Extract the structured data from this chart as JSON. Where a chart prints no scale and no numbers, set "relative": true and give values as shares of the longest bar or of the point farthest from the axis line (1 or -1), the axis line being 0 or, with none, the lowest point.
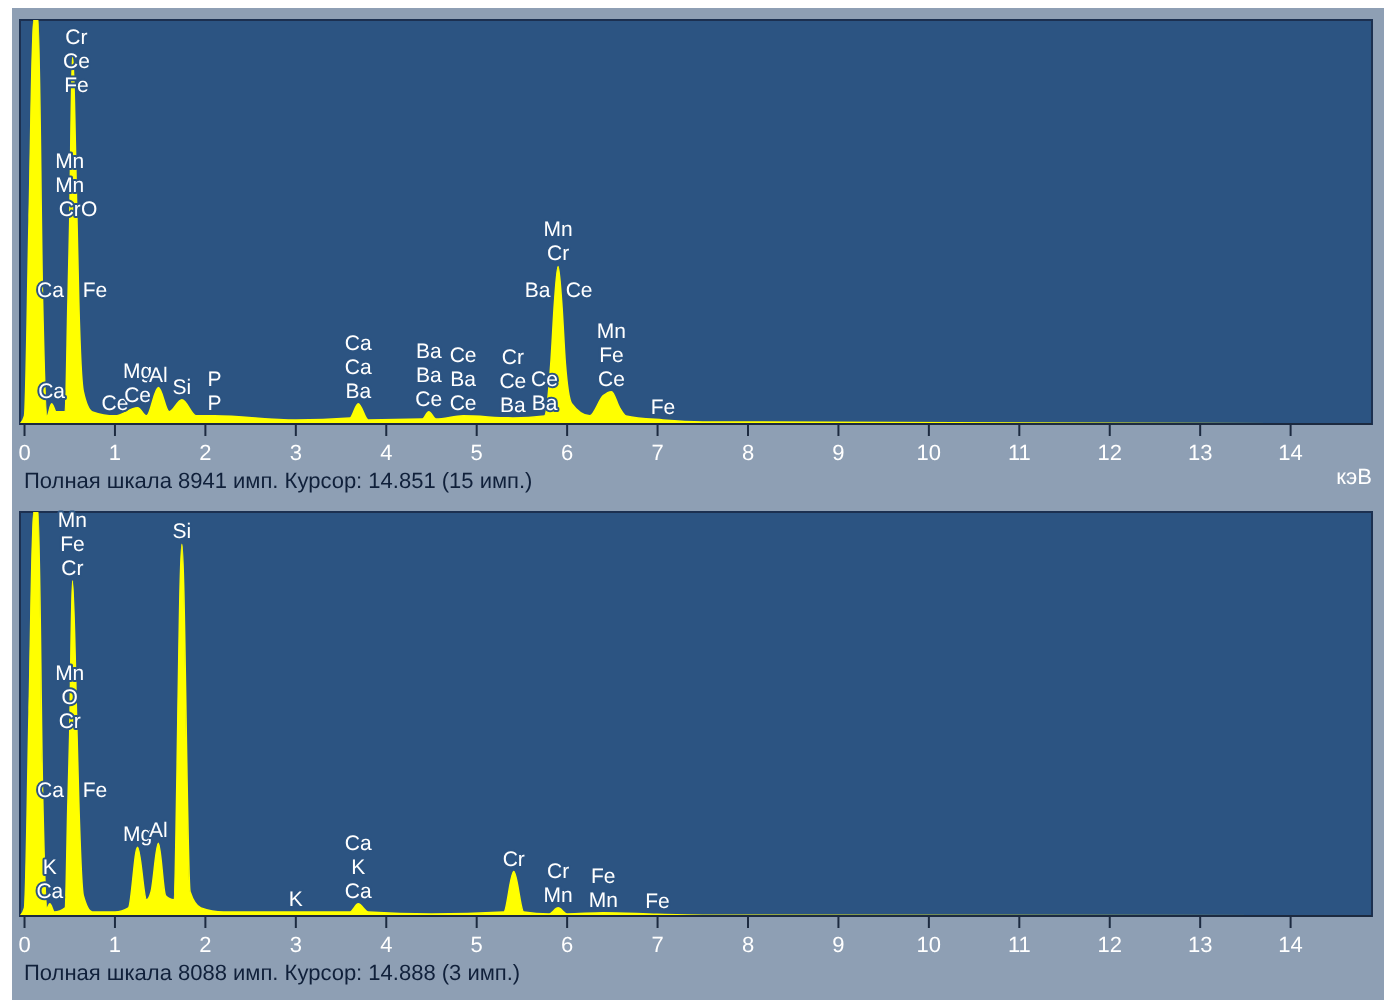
{
  "chart_data": [
    {
      "type": "area",
      "relative": true,
      "xlabel": "кэВ",
      "xlim": [
        -0.05,
        14.9
      ],
      "xticks": [
        0,
        1,
        2,
        3,
        4,
        5,
        6,
        7,
        8,
        9,
        10,
        11,
        12,
        13,
        14
      ],
      "grid": false,
      "tick_labels": "x",
      "x": [
        -0.05,
        0,
        0.05,
        0.1,
        0.15,
        0.2,
        0.25,
        0.3,
        0.35,
        0.45,
        0.48,
        0.5,
        0.53,
        0.58,
        0.6,
        0.65,
        0.75,
        1.0,
        1.25,
        1.35,
        1.48,
        1.6,
        1.74,
        1.9,
        2.1,
        3.0,
        3.6,
        3.69,
        3.8,
        4.4,
        4.47,
        4.55,
        4.85,
        5.4,
        5.75,
        5.82,
        5.86,
        5.9,
        5.94,
        5.98,
        6.05,
        6.25,
        6.4,
        6.49,
        6.58,
        6.65,
        7.06,
        7.5,
        14.9
      ],
      "series": [
        {
          "color": "#ffff00",
          "values": [
            0,
            0.02,
            0.5,
            1,
            1,
            0.3,
            0.02,
            0.05,
            0.03,
            0.03,
            0.3,
            0.5,
            0.91,
            0.5,
            0.3,
            0.08,
            0.03,
            0.02,
            0.04,
            0.02,
            0.09,
            0.03,
            0.06,
            0.02,
            0.02,
            0.01,
            0.015,
            0.05,
            0.01,
            0.012,
            0.03,
            0.012,
            0.02,
            0.015,
            0.02,
            0.15,
            0.3,
            0.39,
            0.3,
            0.15,
            0.05,
            0.02,
            0.07,
            0.08,
            0.04,
            0.02,
            0.01,
            0.005,
            0
          ]
        }
      ],
      "annotations": [
        "Полная шкала 8941 имп. Курсор: 14.851  (15 имп.)",
        {
          "text": "Cr",
          "x": 0.53,
          "y": 0.91
        },
        {
          "text": "Ce",
          "x": 0.53,
          "y": 0.91
        },
        {
          "text": "Fe",
          "x": 0.53,
          "y": 0.91
        },
        {
          "text": "Mn",
          "x": 0.5,
          "y": 0.5
        },
        {
          "text": "Mn",
          "x": 0.5,
          "y": 0.5
        },
        {
          "text": "Cr",
          "x": 0.5,
          "y": 0.5
        },
        {
          "text": "O",
          "x": 0.58,
          "y": 0.5
        },
        {
          "text": "Ca",
          "x": 0.48,
          "y": 0.3
        },
        {
          "text": "Fe",
          "x": 0.6,
          "y": 0.3
        },
        {
          "text": "Ca",
          "x": 0.3,
          "y": 0.05
        },
        {
          "text": "Ce",
          "x": 1.0,
          "y": 0.02
        },
        {
          "text": "Mg",
          "x": 1.25,
          "y": 0.04
        },
        {
          "text": "Ce",
          "x": 1.25,
          "y": 0.04
        },
        {
          "text": "Al",
          "x": 1.48,
          "y": 0.09
        },
        {
          "text": "Si",
          "x": 1.74,
          "y": 0.06
        },
        {
          "text": "P",
          "x": 2.1,
          "y": 0.02
        },
        {
          "text": "P",
          "x": 2.1,
          "y": 0.02
        },
        {
          "text": "Ca",
          "x": 3.69,
          "y": 0.05
        },
        {
          "text": "Ca",
          "x": 3.69,
          "y": 0.05
        },
        {
          "text": "Ba",
          "x": 3.69,
          "y": 0.05
        },
        {
          "text": "Ba",
          "x": 4.47,
          "y": 0.03
        },
        {
          "text": "Ba",
          "x": 4.47,
          "y": 0.03
        },
        {
          "text": "Ce",
          "x": 4.47,
          "y": 0.03
        },
        {
          "text": "Ce",
          "x": 4.85,
          "y": 0.02
        },
        {
          "text": "Ba",
          "x": 4.85,
          "y": 0.02
        },
        {
          "text": "Ce",
          "x": 4.85,
          "y": 0.02
        },
        {
          "text": "Cr",
          "x": 5.4,
          "y": 0.015
        },
        {
          "text": "Ce",
          "x": 5.4,
          "y": 0.015
        },
        {
          "text": "Ba",
          "x": 5.4,
          "y": 0.015
        },
        {
          "text": "Ce",
          "x": 5.75,
          "y": 0.02
        },
        {
          "text": "Ba",
          "x": 5.75,
          "y": 0.02
        },
        {
          "text": "Mn",
          "x": 5.9,
          "y": 0.39
        },
        {
          "text": "Cr",
          "x": 5.9,
          "y": 0.39
        },
        {
          "text": "Ba",
          "x": 5.86,
          "y": 0.3
        },
        {
          "text": "Ce",
          "x": 5.94,
          "y": 0.3
        },
        {
          "text": "Mn",
          "x": 6.49,
          "y": 0.08
        },
        {
          "text": "Fe",
          "x": 6.49,
          "y": 0.08
        },
        {
          "text": "Ce",
          "x": 6.49,
          "y": 0.08
        },
        {
          "text": "Fe",
          "x": 7.06,
          "y": 0.01
        }
      ]
    },
    {
      "type": "area",
      "relative": true,
      "xlim": [
        -0.05,
        14.9
      ],
      "xticks": [
        0,
        1,
        2,
        3,
        4,
        5,
        6,
        7,
        8,
        9,
        10,
        11,
        12,
        13,
        14
      ],
      "grid": false,
      "tick_labels": "x",
      "x": [
        -0.05,
        0,
        0.05,
        0.1,
        0.15,
        0.2,
        0.25,
        0.28,
        0.33,
        0.45,
        0.48,
        0.5,
        0.53,
        0.58,
        0.6,
        0.65,
        0.75,
        1.0,
        1.15,
        1.25,
        1.35,
        1.4,
        1.48,
        1.56,
        1.65,
        1.74,
        1.83,
        1.95,
        2.2,
        3.0,
        3.6,
        3.69,
        3.8,
        4.5,
        5.3,
        5.41,
        5.52,
        5.8,
        5.9,
        6.0,
        6.4,
        7.0,
        7.5,
        14.9
      ],
      "series": [
        {
          "color": "#ffff00",
          "values": [
            0,
            0.02,
            0.5,
            1,
            1,
            0.3,
            0.02,
            0.03,
            0.01,
            0.02,
            0.28,
            0.45,
            0.83,
            0.45,
            0.28,
            0.05,
            0.01,
            0.01,
            0.02,
            0.17,
            0.04,
            0.06,
            0.18,
            0.05,
            0.04,
            0.92,
            0.06,
            0.02,
            0.01,
            0.01,
            0.01,
            0.03,
            0.01,
            0.005,
            0.01,
            0.11,
            0.01,
            0.005,
            0.02,
            0.005,
            0.008,
            0.004,
            0.002,
            0
          ]
        }
      ],
      "annotations": [
        "Полная шкала 8088 имп. Курсор: 14.888  (3 имп.)",
        {
          "text": "Si",
          "x": 1.74,
          "y": 0.92
        },
        {
          "text": "Mn",
          "x": 0.53,
          "y": 0.83
        },
        {
          "text": "Fe",
          "x": 0.53,
          "y": 0.83
        },
        {
          "text": "Cr",
          "x": 0.53,
          "y": 0.83
        },
        {
          "text": "Mn",
          "x": 0.5,
          "y": 0.45
        },
        {
          "text": "O",
          "x": 0.5,
          "y": 0.45
        },
        {
          "text": "Cr",
          "x": 0.5,
          "y": 0.45
        },
        {
          "text": "Ca",
          "x": 0.48,
          "y": 0.28
        },
        {
          "text": "Fe",
          "x": 0.6,
          "y": 0.28
        },
        {
          "text": "Mg",
          "x": 1.25,
          "y": 0.17
        },
        {
          "text": "Al",
          "x": 1.48,
          "y": 0.18
        },
        {
          "text": "K",
          "x": 0.28,
          "y": 0.03
        },
        {
          "text": "Ca",
          "x": 0.28,
          "y": 0.03
        },
        {
          "text": "K",
          "x": 3.0,
          "y": 0.01
        },
        {
          "text": "Ca",
          "x": 3.69,
          "y": 0.03
        },
        {
          "text": "K",
          "x": 3.69,
          "y": 0.03
        },
        {
          "text": "Ca",
          "x": 3.69,
          "y": 0.03
        },
        {
          "text": "Cr",
          "x": 5.41,
          "y": 0.11
        },
        {
          "text": "Cr",
          "x": 5.9,
          "y": 0.02
        },
        {
          "text": "Mn",
          "x": 5.9,
          "y": 0.02
        },
        {
          "text": "Fe",
          "x": 6.4,
          "y": 0.008
        },
        {
          "text": "Mn",
          "x": 6.4,
          "y": 0.008
        },
        {
          "text": "Fe",
          "x": 7.0,
          "y": 0.004
        }
      ]
    }
  ]
}
